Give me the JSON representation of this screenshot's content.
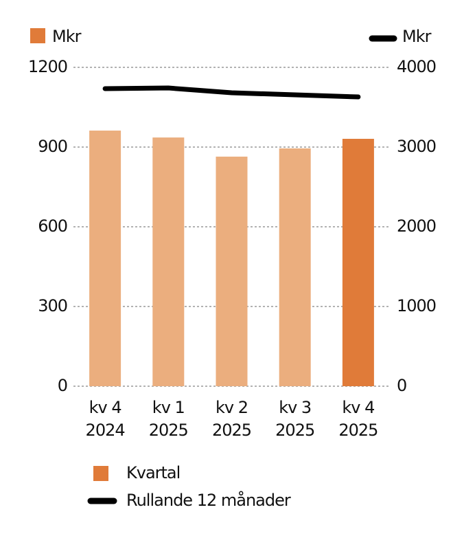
{
  "chart_data": {
    "type": "bar",
    "ylabel": "Mkr",
    "y2label": "Mkr",
    "categories": [
      [
        "kv 4",
        "2024"
      ],
      [
        "kv 1",
        "2025"
      ],
      [
        "kv 2",
        "2025"
      ],
      [
        "kv 3",
        "2025"
      ],
      [
        "kv 4",
        "2025"
      ]
    ],
    "series": [
      {
        "name": "Kvartal",
        "color": "#e07b39",
        "colors": [
          "#ebae7e",
          "#ebae7e",
          "#ebae7e",
          "#ebae7e",
          "#e07b39"
        ],
        "values": [
          962,
          936,
          864,
          895,
          931
        ]
      },
      {
        "name": "Rullande 12 månader",
        "type": "line",
        "axis": "y2",
        "color": "#000000",
        "values": [
          3733,
          3741,
          3681,
          3655,
          3629
        ]
      }
    ],
    "ylim": [
      0,
      1200
    ],
    "yticks": [
      0,
      300,
      600,
      900,
      1200
    ],
    "y2lim": [
      0,
      4000
    ],
    "y2ticks": [
      0,
      1000,
      2000,
      3000,
      4000
    ],
    "grid": true
  }
}
